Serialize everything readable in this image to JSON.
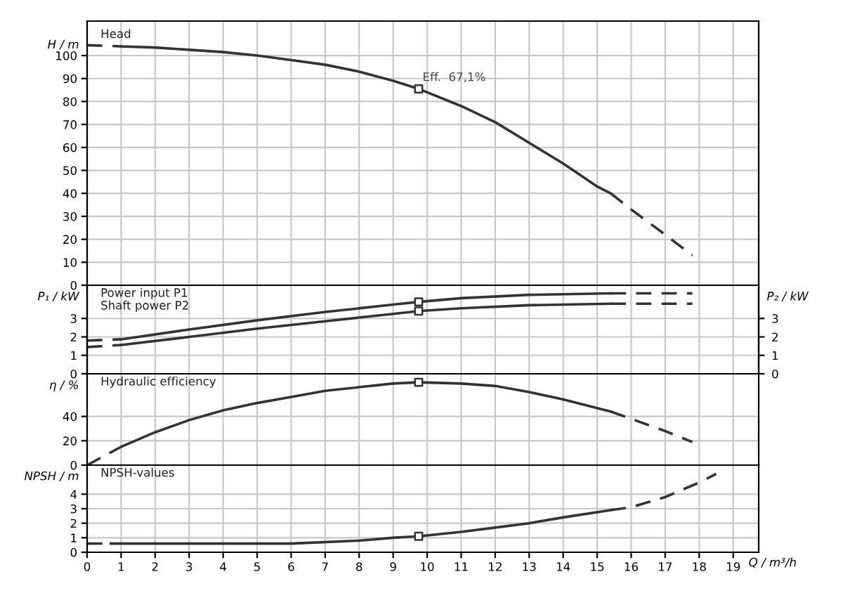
{
  "chart_data": [
    {
      "type": "line",
      "ylabel": "H / m",
      "annotations": [
        "Head",
        {
          "text": "Eff.  67,1%",
          "x": 9.75,
          "y": 85.5
        }
      ],
      "xlim": [
        0,
        19.75
      ],
      "xticks": [
        0,
        1,
        2,
        3,
        4,
        5,
        6,
        7,
        8,
        9,
        10,
        11,
        12,
        13,
        14,
        15,
        16,
        17,
        18,
        19
      ],
      "ylim": [
        0,
        115
      ],
      "yticks": [
        0,
        10,
        20,
        30,
        40,
        50,
        60,
        70,
        80,
        90,
        100
      ],
      "grid": true,
      "tick_labels": "y",
      "series": [
        {
          "color": "#333333",
          "line_style": "dashed",
          "x": [
            0,
            1
          ],
          "values": [
            104.5,
            104
          ]
        },
        {
          "color": "#333333",
          "line_style": "solid",
          "x": [
            1,
            2,
            3,
            4,
            5,
            6,
            7,
            8,
            9,
            9.75,
            10,
            11,
            12,
            13,
            14,
            15,
            15.4
          ],
          "values": [
            104,
            103.5,
            102.5,
            101.5,
            100,
            98,
            96,
            93,
            89,
            85.5,
            84,
            78,
            71,
            62,
            53,
            43,
            40
          ]
        },
        {
          "color": "#333333",
          "line_style": "dashed",
          "x": [
            15.4,
            16,
            17,
            17.8
          ],
          "values": [
            40,
            33,
            22,
            13
          ]
        },
        {
          "type": "scatter",
          "marker": "square",
          "color": "#333333",
          "x": [
            9.75
          ],
          "values": [
            85.5
          ]
        }
      ]
    },
    {
      "type": "line",
      "ylabel": "P₁ / kW",
      "y2label": "P₂ / kW",
      "annotations": [
        "Power input P1",
        "Shaft power P2"
      ],
      "xlim": [
        0,
        19.75
      ],
      "xticks": [
        0,
        1,
        2,
        3,
        4,
        5,
        6,
        7,
        8,
        9,
        10,
        11,
        12,
        13,
        14,
        15,
        16,
        17,
        18,
        19
      ],
      "ylim": [
        0,
        4.8
      ],
      "yticks": [
        0,
        1,
        2,
        3
      ],
      "y2lim": [
        0,
        4.8
      ],
      "y2ticks": [
        0,
        1,
        2,
        3
      ],
      "grid": true,
      "tick_labels": "y",
      "series": [
        {
          "color": "#333333",
          "line_style": "dashed",
          "x": [
            0,
            1
          ],
          "values": [
            1.8,
            1.87
          ]
        },
        {
          "color": "#333333",
          "line_style": "solid",
          "x": [
            1,
            3,
            5,
            7,
            9,
            9.75,
            11,
            13,
            15.4
          ],
          "values": [
            1.87,
            2.4,
            2.9,
            3.35,
            3.75,
            3.9,
            4.1,
            4.28,
            4.36
          ]
        },
        {
          "color": "#333333",
          "line_style": "dashed",
          "x": [
            15.4,
            17.8
          ],
          "values": [
            4.36,
            4.36
          ]
        },
        {
          "color": "#333333",
          "line_style": "dashed",
          "x": [
            0,
            1
          ],
          "values": [
            1.45,
            1.56
          ]
        },
        {
          "color": "#333333",
          "line_style": "solid",
          "x": [
            1,
            3,
            5,
            7,
            9,
            9.75,
            11,
            13,
            15.4
          ],
          "values": [
            1.56,
            2.0,
            2.45,
            2.85,
            3.25,
            3.4,
            3.55,
            3.72,
            3.8
          ]
        },
        {
          "color": "#333333",
          "line_style": "dashed",
          "x": [
            15.4,
            17.8
          ],
          "values": [
            3.8,
            3.8
          ]
        },
        {
          "type": "scatter",
          "marker": "square",
          "color": "#333333",
          "x": [
            9.75,
            9.75
          ],
          "values": [
            3.9,
            3.4
          ]
        }
      ]
    },
    {
      "type": "line",
      "ylabel": "η / %",
      "annotations": [
        "Hydraulic efficiency"
      ],
      "xlim": [
        0,
        19.75
      ],
      "xticks": [
        0,
        1,
        2,
        3,
        4,
        5,
        6,
        7,
        8,
        9,
        10,
        11,
        12,
        13,
        14,
        15,
        16,
        17,
        18,
        19
      ],
      "ylim": [
        0,
        75
      ],
      "yticks": [
        0,
        20,
        40
      ],
      "grid": true,
      "tick_labels": "y",
      "series": [
        {
          "color": "#333333",
          "line_style": "dashed",
          "x": [
            0,
            1
          ],
          "values": [
            0,
            15
          ]
        },
        {
          "color": "#333333",
          "line_style": "solid",
          "x": [
            1,
            2,
            3,
            4,
            5,
            6,
            7,
            8,
            9,
            9.75,
            11,
            12,
            13,
            14,
            15.4
          ],
          "values": [
            15,
            27,
            37,
            45,
            51,
            56,
            61,
            64,
            67,
            68,
            67,
            65,
            60,
            54,
            44
          ]
        },
        {
          "color": "#333333",
          "line_style": "dashed",
          "x": [
            15.4,
            16,
            17,
            17.8
          ],
          "values": [
            44,
            38,
            28,
            19
          ]
        },
        {
          "type": "scatter",
          "marker": "square",
          "color": "#333333",
          "x": [
            9.75
          ],
          "values": [
            68
          ]
        }
      ]
    },
    {
      "type": "line",
      "ylabel": "NPSH / m",
      "xlabel": "Q / m³/h",
      "annotations": [
        "NPSH-values"
      ],
      "xlim": [
        0,
        19.75
      ],
      "xticks": [
        0,
        1,
        2,
        3,
        4,
        5,
        6,
        7,
        8,
        9,
        10,
        11,
        12,
        13,
        14,
        15,
        16,
        17,
        18,
        19
      ],
      "ylim": [
        0,
        6
      ],
      "yticks": [
        0,
        1,
        2,
        3,
        4
      ],
      "grid": true,
      "series": [
        {
          "color": "#333333",
          "line_style": "dashed",
          "x": [
            0,
            0.7
          ],
          "values": [
            0.6,
            0.6
          ]
        },
        {
          "color": "#333333",
          "line_style": "solid",
          "x": [
            0.7,
            6,
            8,
            9,
            9.75,
            11,
            12,
            13,
            14,
            15.4
          ],
          "values": [
            0.6,
            0.6,
            0.8,
            1.0,
            1.1,
            1.4,
            1.7,
            2.0,
            2.4,
            2.9
          ]
        },
        {
          "color": "#333333",
          "line_style": "dashed",
          "x": [
            15.4,
            16,
            17,
            18,
            18.5
          ],
          "values": [
            2.9,
            3.1,
            3.8,
            4.8,
            5.4
          ]
        },
        {
          "type": "scatter",
          "marker": "square",
          "color": "#333333",
          "x": [
            9.75
          ],
          "values": [
            1.1
          ]
        }
      ]
    }
  ]
}
